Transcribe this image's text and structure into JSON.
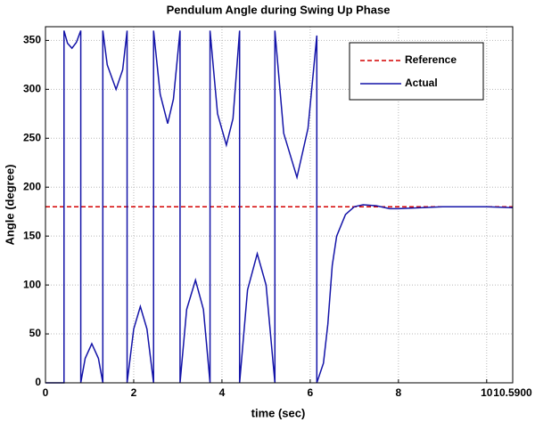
{
  "chart_data": {
    "type": "line",
    "title": "Pendulum Angle during Swing Up Phase",
    "x_label": "time (sec)",
    "y_label": "Angle (degree)",
    "xlim": [
      0,
      10.59
    ],
    "ylim": [
      0,
      364
    ],
    "xticks": [
      0,
      2,
      4,
      6,
      8,
      10,
      {
        "value": 10.59,
        "label": "10.5900"
      }
    ],
    "yticks": [
      0,
      50,
      100,
      150,
      200,
      250,
      300,
      350
    ],
    "grid": true,
    "legend": "upper right",
    "series": [
      {
        "name": "Reference",
        "color": "#d40000",
        "dashed": true,
        "x": [
          0,
          10.59
        ],
        "values": [
          180,
          180
        ]
      },
      {
        "name": "Actual",
        "color": "#1414a8",
        "x": [
          0,
          0.42,
          0.42,
          0.5,
          0.6,
          0.7,
          0.8,
          0.8,
          0.9,
          1.05,
          1.2,
          1.3,
          1.3,
          1.4,
          1.6,
          1.75,
          1.85,
          1.85,
          2.0,
          2.15,
          2.3,
          2.45,
          2.45,
          2.6,
          2.77,
          2.9,
          3.05,
          3.05,
          3.2,
          3.4,
          3.58,
          3.73,
          3.73,
          3.9,
          4.1,
          4.25,
          4.4,
          4.4,
          4.58,
          4.8,
          5.0,
          5.2,
          5.2,
          5.4,
          5.7,
          5.95,
          6.15,
          6.15,
          6.3,
          6.4,
          6.5,
          6.6,
          6.8,
          7.0,
          7.2,
          7.5,
          7.8,
          8.0,
          9.0,
          10.0,
          10.59
        ],
        "values": [
          0,
          0,
          360,
          347,
          342,
          348,
          360,
          0,
          25,
          40,
          25,
          0,
          360,
          325,
          300,
          320,
          360,
          0,
          55,
          78,
          55,
          0,
          360,
          295,
          265,
          290,
          360,
          0,
          75,
          105,
          75,
          0,
          360,
          275,
          243,
          270,
          360,
          0,
          95,
          132,
          100,
          0,
          360,
          255,
          210,
          260,
          355,
          0,
          20,
          60,
          120,
          150,
          172,
          180,
          182,
          181,
          178,
          178,
          180,
          180,
          179
        ]
      }
    ]
  }
}
